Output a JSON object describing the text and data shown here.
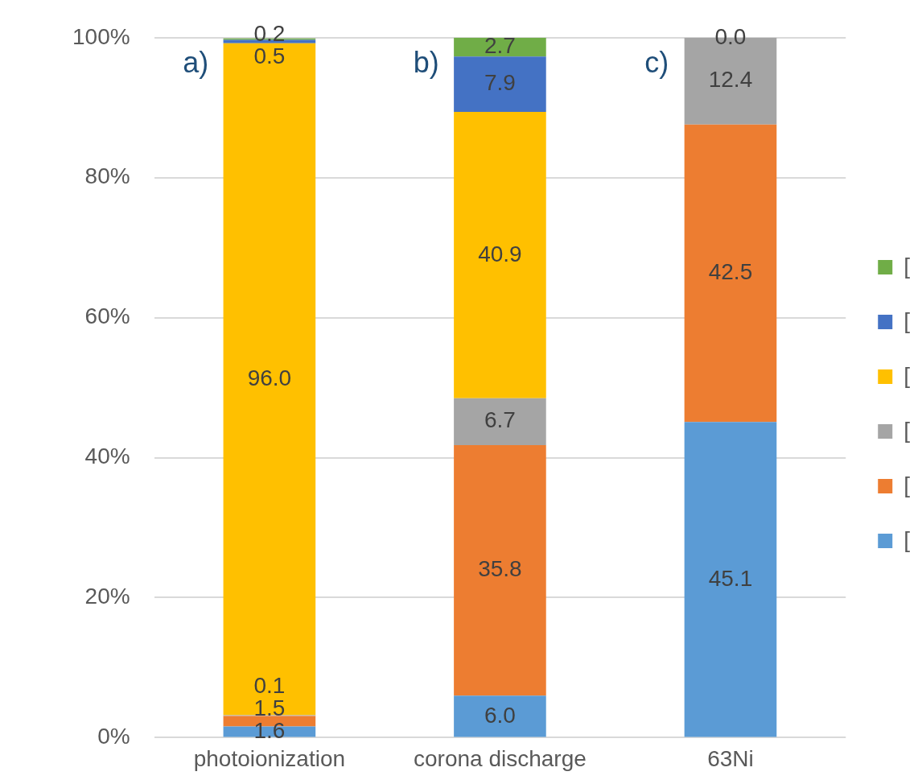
{
  "chart_data": {
    "type": "bar",
    "stacked": true,
    "categories": [
      "photoionization",
      "corona discharge",
      "63Ni"
    ],
    "series": [
      {
        "name": "[",
        "color": "#5b9bd5",
        "values": [
          1.6,
          6.0,
          45.1
        ],
        "value_labels": [
          "1.6",
          "6.0",
          "45.1"
        ]
      },
      {
        "name": "[",
        "color": "#ed7d31",
        "values": [
          1.5,
          35.8,
          42.5
        ],
        "value_labels": [
          "1.5",
          "35.8",
          "42.5"
        ]
      },
      {
        "name": "[",
        "color": "#a5a5a5",
        "values": [
          0.1,
          6.7,
          12.4
        ],
        "value_labels": [
          "0.1",
          "6.7",
          "12.4"
        ]
      },
      {
        "name": "[",
        "color": "#ffc000",
        "values": [
          96.0,
          40.9,
          0.0
        ],
        "value_labels": [
          "96.0",
          "40.9",
          "0.0"
        ]
      },
      {
        "name": "[",
        "color": "#4472c4",
        "values": [
          0.5,
          7.9,
          null
        ],
        "value_labels": [
          "0.5",
          "7.9",
          null
        ]
      },
      {
        "name": "[",
        "color": "#70ad47",
        "values": [
          0.2,
          2.7,
          null
        ],
        "value_labels": [
          "0.2",
          "2.7",
          null
        ]
      }
    ],
    "ylim": [
      0,
      100
    ],
    "yticks": [
      {
        "value": 0,
        "label": "0%"
      },
      {
        "value": 20,
        "label": "20%"
      },
      {
        "value": 40,
        "label": "40%"
      },
      {
        "value": 60,
        "label": "60%"
      },
      {
        "value": 80,
        "label": "80%"
      },
      {
        "value": 100,
        "label": "100%"
      }
    ],
    "grid": "y",
    "legend": "right",
    "annotations": [
      "a)",
      "b)",
      "c)"
    ]
  }
}
